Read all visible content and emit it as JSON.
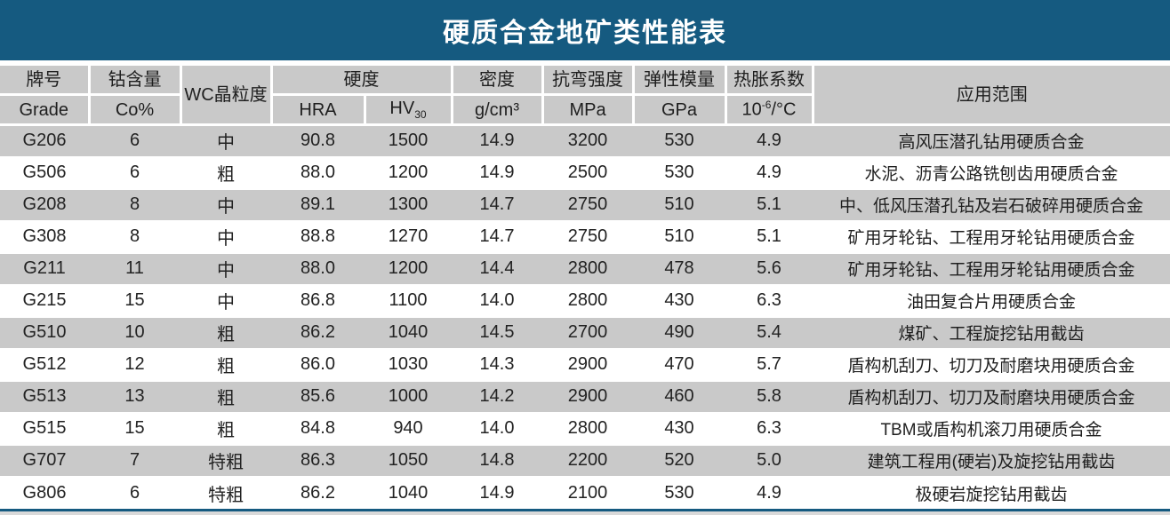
{
  "title": "硬质合金地矿类性能表",
  "colors": {
    "banner_blue": "#155a80",
    "row_gray": "#c9c9c9",
    "row_white": "#ffffff",
    "text_dark": "#222222"
  },
  "header": {
    "grade_zh": "牌号",
    "grade_en": "Grade",
    "co_zh": "钴含量",
    "co_unit": "Co%",
    "wc": "WC晶粒度",
    "hardness": "硬度",
    "hra": "HRA",
    "hv_base": "HV",
    "hv_sub": "30",
    "density_zh": "密度",
    "density_unit": "g/cm³",
    "trs_zh": "抗弯强度",
    "trs_unit": "MPa",
    "modulus_zh": "弹性模量",
    "modulus_unit": "GPa",
    "cte_zh": "热胀系数",
    "cte_base": "10",
    "cte_sup": "-6",
    "cte_rest": "/°C",
    "application": "应用范围"
  },
  "chart_data": {
    "type": "table",
    "title": "硬质合金地矿类性能表",
    "columns": [
      "牌号 Grade",
      "钴含量 Co%",
      "WC晶粒度",
      "硬度 HRA",
      "硬度 HV30",
      "密度 g/cm³",
      "抗弯强度 MPa",
      "弹性模量 GPa",
      "热胀系数 10⁻⁶/°C",
      "应用范围"
    ],
    "rows": [
      [
        "G206",
        "6",
        "中",
        "90.8",
        "1500",
        "14.9",
        "3200",
        "530",
        "4.9",
        "高风压潜孔钻用硬质合金"
      ],
      [
        "G506",
        "6",
        "粗",
        "88.0",
        "1200",
        "14.9",
        "2500",
        "530",
        "4.9",
        "水泥、沥青公路铣刨齿用硬质合金"
      ],
      [
        "G208",
        "8",
        "中",
        "89.1",
        "1300",
        "14.7",
        "2750",
        "510",
        "5.1",
        "中、低风压潜孔钻及岩石破碎用硬质合金"
      ],
      [
        "G308",
        "8",
        "中",
        "88.8",
        "1270",
        "14.7",
        "2750",
        "510",
        "5.1",
        "矿用牙轮钻、工程用牙轮钻用硬质合金"
      ],
      [
        "G211",
        "11",
        "中",
        "88.0",
        "1200",
        "14.4",
        "2800",
        "478",
        "5.6",
        "矿用牙轮钻、工程用牙轮钻用硬质合金"
      ],
      [
        "G215",
        "15",
        "中",
        "86.8",
        "1100",
        "14.0",
        "2800",
        "430",
        "6.3",
        "油田复合片用硬质合金"
      ],
      [
        "G510",
        "10",
        "粗",
        "86.2",
        "1040",
        "14.5",
        "2700",
        "490",
        "5.4",
        "煤矿、工程旋挖钻用截齿"
      ],
      [
        "G512",
        "12",
        "粗",
        "86.0",
        "1030",
        "14.3",
        "2900",
        "470",
        "5.7",
        "盾构机刮刀、切刀及耐磨块用硬质合金"
      ],
      [
        "G513",
        "13",
        "粗",
        "85.6",
        "1000",
        "14.2",
        "2900",
        "460",
        "5.8",
        "盾构机刮刀、切刀及耐磨块用硬质合金"
      ],
      [
        "G515",
        "15",
        "粗",
        "84.8",
        "940",
        "14.0",
        "2800",
        "430",
        "6.3",
        "TBM或盾构机滚刀用硬质合金"
      ],
      [
        "G707",
        "7",
        "特粗",
        "86.3",
        "1050",
        "14.8",
        "2200",
        "520",
        "5.0",
        "建筑工程用(硬岩)及旋挖钻用截齿"
      ],
      [
        "G806",
        "6",
        "特粗",
        "86.2",
        "1040",
        "14.9",
        "2100",
        "530",
        "4.9",
        "极硬岩旋挖钻用截齿"
      ]
    ]
  }
}
